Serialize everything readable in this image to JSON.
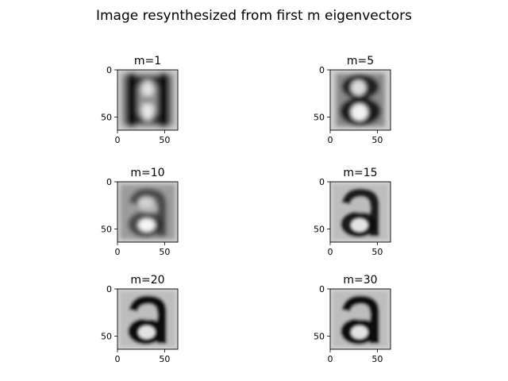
{
  "figure": {
    "suptitle": "Image resynthesized from first m eigenvectors"
  },
  "chart_data": [
    {
      "type": "heatmap",
      "title": "m=1",
      "m": 1,
      "xticks": [
        0,
        50
      ],
      "yticks": [
        0,
        50
      ],
      "xlim": [
        0,
        64
      ],
      "ylim": [
        64,
        0
      ],
      "colormap": "gray",
      "grid": false
    },
    {
      "type": "heatmap",
      "title": "m=5",
      "m": 5,
      "xticks": [
        0,
        50
      ],
      "yticks": [
        0,
        50
      ],
      "xlim": [
        0,
        64
      ],
      "ylim": [
        64,
        0
      ],
      "colormap": "gray",
      "grid": false
    },
    {
      "type": "heatmap",
      "title": "m=10",
      "m": 10,
      "xticks": [
        0,
        50
      ],
      "yticks": [
        0,
        50
      ],
      "xlim": [
        0,
        64
      ],
      "ylim": [
        64,
        0
      ],
      "colormap": "gray",
      "grid": false
    },
    {
      "type": "heatmap",
      "title": "m=15",
      "m": 15,
      "xticks": [
        0,
        50
      ],
      "yticks": [
        0,
        50
      ],
      "xlim": [
        0,
        64
      ],
      "ylim": [
        64,
        0
      ],
      "colormap": "gray",
      "grid": false
    },
    {
      "type": "heatmap",
      "title": "m=20",
      "m": 20,
      "xticks": [
        0,
        50
      ],
      "yticks": [
        0,
        50
      ],
      "xlim": [
        0,
        64
      ],
      "ylim": [
        64,
        0
      ],
      "colormap": "gray",
      "grid": false
    },
    {
      "type": "heatmap",
      "title": "m=30",
      "m": 30,
      "xticks": [
        0,
        50
      ],
      "yticks": [
        0,
        50
      ],
      "xlim": [
        0,
        64
      ],
      "ylim": [
        64,
        0
      ],
      "colormap": "gray",
      "grid": false
    }
  ]
}
